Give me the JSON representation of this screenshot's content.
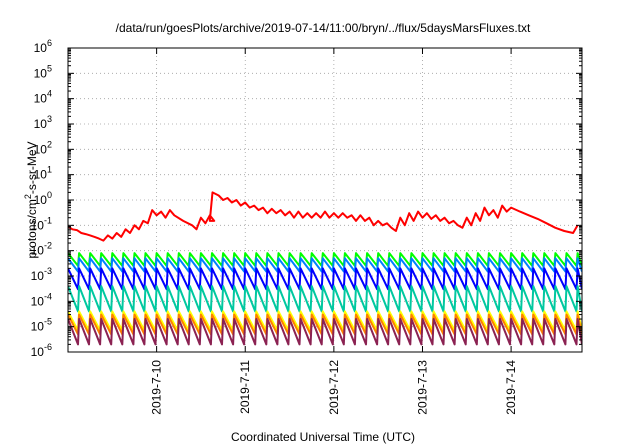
{
  "chart_data": {
    "type": "line",
    "title": "/data/run/goesPlots/archive/2019-07-14/11:00/bryn/../flux/5daysMarsFluxes.txt",
    "xlabel": "Coordinated Universal Time (UTC)",
    "ylabel_parts": [
      "protons/cm",
      "2",
      "-s-sr-MeV"
    ],
    "y_scale": "log",
    "ylim": [
      1e-06,
      1000000.0
    ],
    "xlim": [
      0,
      5.8
    ],
    "grid": true,
    "legend": "none",
    "x_tick_labels": [
      {
        "x": 1,
        "label": "2019-7-10"
      },
      {
        "x": 2,
        "label": "2019-7-11"
      },
      {
        "x": 3,
        "label": "2019-7-12"
      },
      {
        "x": 4,
        "label": "2019-7-13"
      },
      {
        "x": 5,
        "label": "2019-7-14"
      }
    ],
    "y_tick_exponents": [
      -6,
      -5,
      -4,
      -3,
      -2,
      -1,
      0,
      1,
      2,
      3,
      4,
      5,
      6
    ],
    "series": [
      {
        "color": "#ff0000",
        "points": [
          [
            0,
            0.09
          ],
          [
            0.05,
            0.07
          ],
          [
            0.1,
            0.065
          ],
          [
            0.15,
            0.05
          ],
          [
            0.2,
            0.045
          ],
          [
            0.25,
            0.04
          ],
          [
            0.3,
            0.035
          ],
          [
            0.35,
            0.03
          ],
          [
            0.4,
            0.025
          ],
          [
            0.45,
            0.04
          ],
          [
            0.5,
            0.03
          ],
          [
            0.55,
            0.05
          ],
          [
            0.6,
            0.035
          ],
          [
            0.65,
            0.07
          ],
          [
            0.7,
            0.05
          ],
          [
            0.75,
            0.1
          ],
          [
            0.8,
            0.07
          ],
          [
            0.85,
            0.15
          ],
          [
            0.9,
            0.12
          ],
          [
            0.95,
            0.4
          ],
          [
            1.0,
            0.25
          ],
          [
            1.05,
            0.35
          ],
          [
            1.1,
            0.2
          ],
          [
            1.15,
            0.4
          ],
          [
            1.2,
            0.25
          ],
          [
            1.3,
            0.15
          ],
          [
            1.4,
            0.1
          ],
          [
            1.45,
            0.07
          ],
          [
            1.5,
            0.2
          ],
          [
            1.55,
            0.12
          ],
          [
            1.6,
            0.25
          ],
          [
            1.65,
            0.15
          ],
          [
            1.6,
            0.15
          ],
          [
            1.63,
            2.0
          ],
          [
            1.7,
            1.5
          ],
          [
            1.75,
            1.0
          ],
          [
            1.8,
            1.2
          ],
          [
            1.85,
            0.8
          ],
          [
            1.9,
            1.0
          ],
          [
            1.95,
            0.6
          ],
          [
            2.0,
            0.8
          ],
          [
            2.05,
            0.5
          ],
          [
            2.1,
            0.6
          ],
          [
            2.15,
            0.4
          ],
          [
            2.2,
            0.5
          ],
          [
            2.25,
            0.3
          ],
          [
            2.3,
            0.45
          ],
          [
            2.35,
            0.3
          ],
          [
            2.4,
            0.4
          ],
          [
            2.45,
            0.25
          ],
          [
            2.5,
            0.35
          ],
          [
            2.55,
            0.2
          ],
          [
            2.6,
            0.35
          ],
          [
            2.65,
            0.2
          ],
          [
            2.7,
            0.3
          ],
          [
            2.75,
            0.2
          ],
          [
            2.8,
            0.3
          ],
          [
            2.85,
            0.2
          ],
          [
            2.9,
            0.35
          ],
          [
            2.95,
            0.2
          ],
          [
            3.0,
            0.3
          ],
          [
            3.05,
            0.2
          ],
          [
            3.1,
            0.3
          ],
          [
            3.15,
            0.2
          ],
          [
            3.2,
            0.25
          ],
          [
            3.25,
            0.15
          ],
          [
            3.3,
            0.25
          ],
          [
            3.35,
            0.15
          ],
          [
            3.4,
            0.2
          ],
          [
            3.45,
            0.1
          ],
          [
            3.5,
            0.15
          ],
          [
            3.55,
            0.1
          ],
          [
            3.6,
            0.12
          ],
          [
            3.65,
            0.08
          ],
          [
            3.7,
            0.06
          ],
          [
            3.75,
            0.2
          ],
          [
            3.8,
            0.1
          ],
          [
            3.85,
            0.3
          ],
          [
            3.9,
            0.15
          ],
          [
            3.95,
            0.35
          ],
          [
            4.0,
            0.2
          ],
          [
            4.05,
            0.3
          ],
          [
            4.1,
            0.18
          ],
          [
            4.15,
            0.25
          ],
          [
            4.2,
            0.15
          ],
          [
            4.25,
            0.2
          ],
          [
            4.3,
            0.12
          ],
          [
            4.35,
            0.15
          ],
          [
            4.4,
            0.1
          ],
          [
            4.45,
            0.08
          ],
          [
            4.5,
            0.2
          ],
          [
            4.55,
            0.1
          ],
          [
            4.6,
            0.3
          ],
          [
            4.65,
            0.15
          ],
          [
            4.7,
            0.5
          ],
          [
            4.75,
            0.25
          ],
          [
            4.8,
            0.4
          ],
          [
            4.85,
            0.2
          ],
          [
            4.9,
            0.6
          ],
          [
            4.95,
            0.35
          ],
          [
            5.0,
            0.5
          ],
          [
            5.1,
            0.35
          ],
          [
            5.2,
            0.25
          ],
          [
            5.3,
            0.18
          ],
          [
            5.4,
            0.12
          ],
          [
            5.5,
            0.08
          ],
          [
            5.6,
            0.06
          ],
          [
            5.7,
            0.05
          ],
          [
            5.75,
            0.1
          ]
        ]
      },
      {
        "color": "#00ff00",
        "sawtooth": {
          "base": 0.004,
          "peak": 0.008,
          "trough": 0.0025,
          "period": 0.125
        }
      },
      {
        "color": "#0080ff",
        "sawtooth": {
          "base": 0.002,
          "peak": 0.005,
          "trough": 0.0015,
          "period": 0.125
        }
      },
      {
        "color": "#0000ff",
        "sawtooth": {
          "base": 0.0007,
          "peak": 0.002,
          "trough": 0.0003,
          "period": 0.125
        }
      },
      {
        "color": "#00c8a0",
        "sawtooth": {
          "base": 8e-05,
          "peak": 0.0004,
          "trough": 4e-05,
          "period": 0.125
        }
      },
      {
        "color": "#ffff00",
        "sawtooth": {
          "base": 1e-05,
          "peak": 4e-05,
          "trough": 7e-06,
          "period": 0.125
        }
      },
      {
        "color": "#ff8000",
        "sawtooth": {
          "base": 8e-06,
          "peak": 3e-05,
          "trough": 5e-06,
          "period": 0.125
        }
      },
      {
        "color": "#8b2252",
        "sawtooth": {
          "base": 4e-06,
          "peak": 2e-05,
          "trough": 2e-06,
          "period": 0.125
        }
      }
    ]
  }
}
